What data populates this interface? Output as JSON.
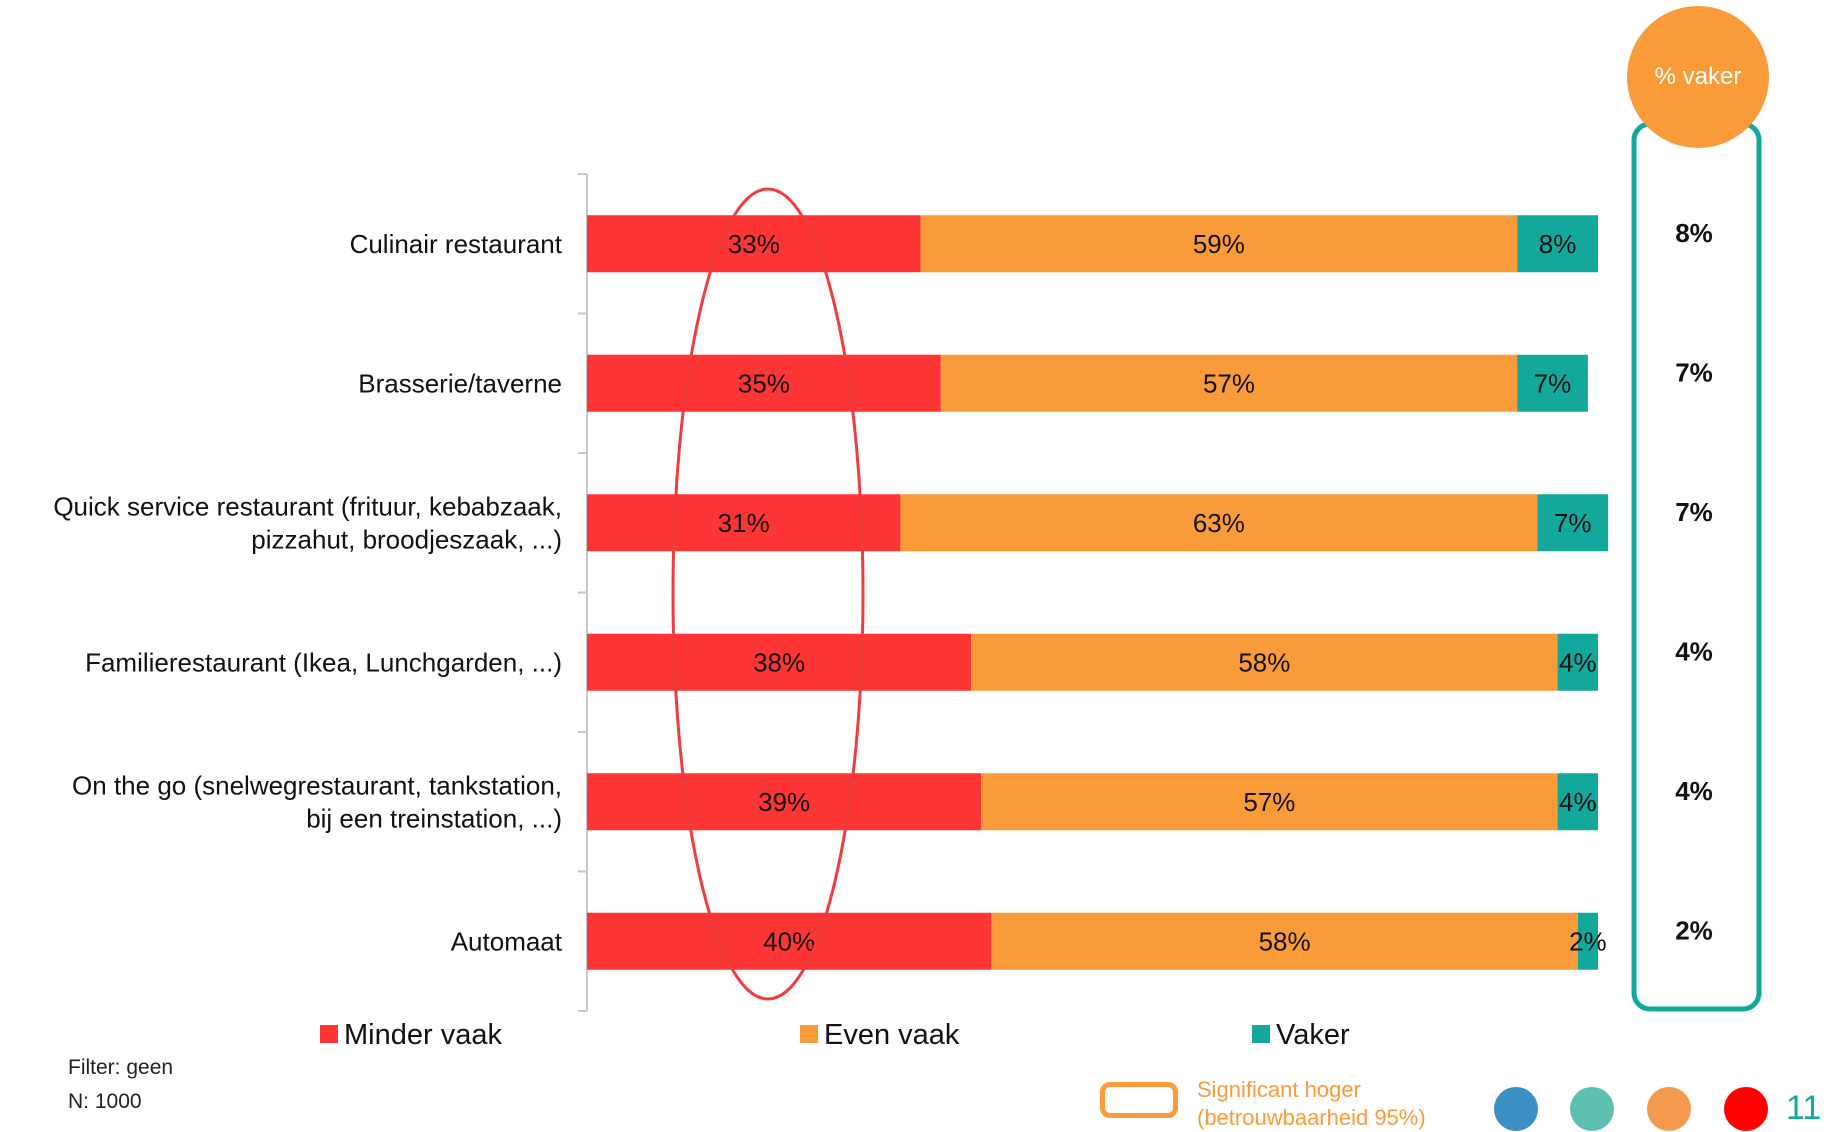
{
  "chart_data": {
    "type": "bar",
    "orientation": "horizontal",
    "stacked": true,
    "categories": [
      [
        "Culinair restaurant"
      ],
      [
        "Brasserie/taverne"
      ],
      [
        "Quick service restaurant (frituur, kebabzaak,",
        "pizzahut, broodjeszaak, ...)"
      ],
      [
        "Familierestaurant (Ikea, Lunchgarden, ...)"
      ],
      [
        "On the go (snelwegrestaurant, tankstation,",
        "bij een treinstation, ...)"
      ],
      [
        "Automaat"
      ]
    ],
    "series": [
      {
        "name": "Minder vaak",
        "color": "#fd3535",
        "values": [
          33,
          35,
          31,
          38,
          39,
          40
        ]
      },
      {
        "name": "Even vaak",
        "color": "#f99b38",
        "values": [
          59,
          57,
          63,
          58,
          57,
          58
        ]
      },
      {
        "name": "Vaker",
        "color": "#12a89b",
        "values": [
          8,
          7,
          7,
          4,
          4,
          2
        ]
      }
    ],
    "xlim": [
      0,
      100
    ],
    "grid": false,
    "legend_position": "bottom",
    "highlight_series": "Minder vaak",
    "side_column": {
      "title": "% vaker",
      "values": [
        "8%",
        "7%",
        "7%",
        "4%",
        "4%",
        "2%"
      ]
    }
  },
  "footer": {
    "filter": "Filter: geen",
    "n": "N: 1000",
    "sig_line1": "Significant hoger",
    "sig_line2": "(betrouwbaarheid 95%)",
    "page": "11",
    "dot_colors": [
      "#3a8fc3",
      "#5cbfb0",
      "#f39a4e",
      "#ff0000"
    ]
  }
}
